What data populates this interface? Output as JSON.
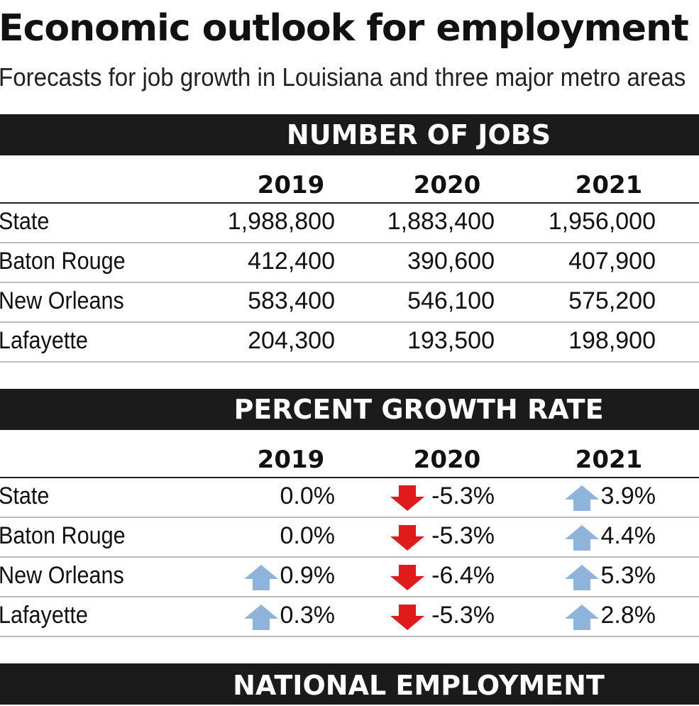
{
  "header": {
    "title": "Economic outlook for employment",
    "subtitle": "Forecasts for job growth in Louisiana and three major metro areas"
  },
  "sections": {
    "jobs_heading": "NUMBER OF JOBS",
    "growth_heading": "PERCENT GROWTH RATE",
    "national_heading": "NATIONAL EMPLOYMENT"
  },
  "years": [
    "2019",
    "2020",
    "2021"
  ],
  "jobs_rows": [
    {
      "label": "State",
      "values": [
        "1,988,800",
        "1,883,400",
        "1,956,000"
      ]
    },
    {
      "label": "Baton Rouge",
      "values": [
        "412,400",
        "390,600",
        "407,900"
      ]
    },
    {
      "label": "New Orleans",
      "values": [
        "583,400",
        "546,100",
        "575,200"
      ]
    },
    {
      "label": "Lafayette",
      "values": [
        "204,300",
        "193,500",
        "198,900"
      ]
    }
  ],
  "growth_rows": [
    {
      "label": "State",
      "values": [
        "0.0%",
        "-5.3%",
        "3.9%"
      ],
      "arrows": [
        "none",
        "down-arrow-icon",
        "up-arrow-icon"
      ]
    },
    {
      "label": "Baton Rouge",
      "values": [
        "0.0%",
        "-5.3%",
        "4.4%"
      ],
      "arrows": [
        "none",
        "down-arrow-icon",
        "up-arrow-icon"
      ]
    },
    {
      "label": "New Orleans",
      "values": [
        "0.9%",
        "-6.4%",
        "5.3%"
      ],
      "arrows": [
        "up-arrow-icon",
        "down-arrow-icon",
        "up-arrow-icon"
      ]
    },
    {
      "label": "Lafayette",
      "values": [
        "0.3%",
        "-5.3%",
        "2.8%"
      ],
      "arrows": [
        "up-arrow-icon",
        "down-arrow-icon",
        "up-arrow-icon"
      ]
    }
  ],
  "colors": {
    "band": "#1b1b1b",
    "up_arrow": "#8fb4dc",
    "down_arrow": "#e01b1b",
    "rule_thin": "#bdbdbd"
  },
  "chart_data": {
    "type": "table",
    "title": "Economic outlook for employment",
    "subtitle": "Forecasts for job growth in Louisiana and three major metro areas",
    "tables": [
      {
        "title": "NUMBER OF JOBS",
        "columns": [
          "2019",
          "2020",
          "2021"
        ],
        "rows": [
          "State",
          "Baton Rouge",
          "New Orleans",
          "Lafayette"
        ],
        "values": [
          [
            1988800,
            1883400,
            1956000
          ],
          [
            412400,
            390600,
            407900
          ],
          [
            583400,
            546100,
            575200
          ],
          [
            204300,
            193500,
            198900
          ]
        ]
      },
      {
        "title": "PERCENT GROWTH RATE",
        "columns": [
          "2019",
          "2020",
          "2021"
        ],
        "rows": [
          "State",
          "Baton Rouge",
          "New Orleans",
          "Lafayette"
        ],
        "values": [
          [
            0.0,
            -5.3,
            3.9
          ],
          [
            0.0,
            -5.3,
            4.4
          ],
          [
            0.9,
            -6.4,
            5.3
          ],
          [
            0.3,
            -5.3,
            2.8
          ]
        ]
      }
    ]
  }
}
